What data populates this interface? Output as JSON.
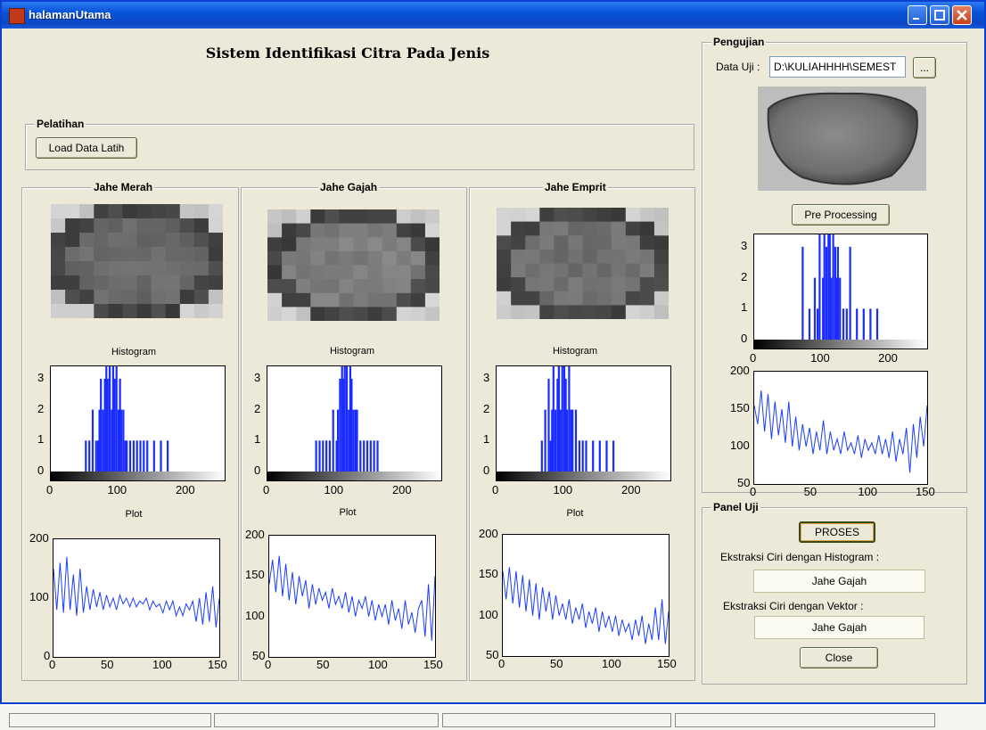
{
  "window": {
    "title": "halamanUtama"
  },
  "app_title": "Sistem Identifikasi Citra Pada Jenis",
  "pelatihan": {
    "title": "Pelatihan",
    "load_button": "Load Data Latih"
  },
  "classes": [
    {
      "title": "Jahe Merah",
      "histogram_caption": "Histogram",
      "plot_caption": "Plot",
      "hist_yticks": [
        "0",
        "1",
        "2",
        "3"
      ],
      "hist_xticks": [
        "0",
        "100",
        "200"
      ],
      "plot_yticks": [
        "0",
        "100",
        "200"
      ],
      "plot_xticks": [
        "0",
        "50",
        "100",
        "150"
      ],
      "img_color": "#6a6a6a"
    },
    {
      "title": "Jahe Gajah",
      "histogram_caption": "Histogram",
      "plot_caption": "Plot",
      "hist_yticks": [
        "0",
        "1",
        "2",
        "3"
      ],
      "hist_xticks": [
        "0",
        "100",
        "200"
      ],
      "plot_yticks": [
        "50",
        "100",
        "150",
        "200"
      ],
      "plot_xticks": [
        "0",
        "50",
        "100",
        "150"
      ],
      "img_color": "#7d7d7d"
    },
    {
      "title": "Jahe Emprit",
      "histogram_caption": "Histogram",
      "plot_caption": "Plot",
      "hist_yticks": [
        "0",
        "1",
        "2",
        "3"
      ],
      "hist_xticks": [
        "0",
        "100",
        "200"
      ],
      "plot_yticks": [
        "50",
        "100",
        "150",
        "200"
      ],
      "plot_xticks": [
        "0",
        "50",
        "100",
        "150"
      ],
      "img_color": "#707070"
    }
  ],
  "pengujian": {
    "title": "Pengujian",
    "data_uji_label": "Data Uji :",
    "data_uji_value": "D:\\KULIAHHHH\\SEMEST",
    "browse_label": "...",
    "preprocess_button": "Pre Processing",
    "hist_yticks": [
      "0",
      "1",
      "2",
      "3"
    ],
    "hist_xticks": [
      "0",
      "100",
      "200"
    ],
    "plot_yticks": [
      "50",
      "100",
      "150",
      "200"
    ],
    "plot_xticks": [
      "0",
      "50",
      "100",
      "150"
    ]
  },
  "panel_uji": {
    "title": "Panel Uji",
    "proses_button": "PROSES",
    "hist_label": "Ekstraksi Ciri dengan Histogram :",
    "hist_result": "Jahe Gajah",
    "vektor_label": "Ekstraksi Ciri dengan Vektor :",
    "vektor_result": "Jahe Gajah",
    "close_button": "Close"
  },
  "colors": {
    "plot_line": "#1a3cff",
    "hist_bar": "#1a2cff",
    "title_bar": "#0753d8"
  },
  "chart_data": [
    {
      "type": "bar",
      "title": "",
      "xlabel": "",
      "ylabel": "",
      "xlim": [
        0,
        255
      ],
      "ylim": [
        0,
        3.4
      ],
      "x": [
        50,
        55,
        60,
        65,
        68,
        70,
        72,
        75,
        78,
        80,
        82,
        85,
        88,
        90,
        92,
        95,
        98,
        100,
        102,
        105,
        108,
        110,
        115,
        120,
        125,
        130,
        135,
        140,
        150,
        160,
        170
      ],
      "values": [
        1,
        1,
        2,
        1,
        1,
        2,
        3,
        2,
        3,
        3.4,
        3,
        3.4,
        2,
        3.4,
        3,
        3.4,
        2,
        3,
        2,
        2,
        1,
        1,
        1,
        1,
        1,
        1,
        1,
        1,
        1,
        1,
        1
      ]
    },
    {
      "type": "bar",
      "title": "",
      "xlabel": "",
      "ylabel": "",
      "xlim": [
        0,
        255
      ],
      "ylim": [
        0,
        3.4
      ],
      "x": [
        70,
        75,
        80,
        85,
        90,
        95,
        100,
        102,
        105,
        108,
        110,
        112,
        115,
        118,
        120,
        122,
        125,
        128,
        130,
        135,
        140,
        145,
        150,
        155,
        160
      ],
      "values": [
        1,
        1,
        1,
        1,
        1,
        2,
        1,
        2,
        3,
        3.4,
        3,
        3.4,
        3.4,
        2,
        3.4,
        3,
        2,
        2,
        2,
        1,
        1,
        1,
        1,
        1,
        1
      ]
    },
    {
      "type": "bar",
      "title": "",
      "xlabel": "",
      "ylabel": "",
      "xlim": [
        0,
        255
      ],
      "ylim": [
        0,
        3.4
      ],
      "x": [
        65,
        70,
        75,
        78,
        80,
        82,
        85,
        88,
        90,
        92,
        95,
        98,
        100,
        102,
        105,
        108,
        110,
        115,
        120,
        125,
        130,
        140,
        150,
        160,
        170
      ],
      "values": [
        1,
        2,
        3,
        1,
        2,
        3.4,
        2,
        3,
        3.4,
        2,
        3.4,
        3.4,
        3,
        2,
        3.4,
        2,
        2,
        2,
        1,
        1,
        1,
        1,
        1,
        1,
        1
      ]
    },
    {
      "type": "bar",
      "title": "",
      "xlabel": "",
      "ylabel": "",
      "xlim": [
        0,
        255
      ],
      "ylim": [
        0,
        3.4
      ],
      "x": [
        70,
        80,
        88,
        92,
        95,
        100,
        102,
        105,
        108,
        110,
        112,
        115,
        118,
        120,
        122,
        125,
        130,
        135,
        140,
        150,
        160,
        170,
        180
      ],
      "values": [
        3,
        1,
        2,
        1,
        3.4,
        2,
        3.4,
        3,
        3.4,
        3.4,
        2,
        3.4,
        3,
        2,
        3,
        2,
        1,
        1,
        3,
        1,
        1,
        1,
        1
      ]
    },
    {
      "type": "line",
      "title": "",
      "xlabel": "",
      "ylabel": "",
      "xlim": [
        0,
        150
      ],
      "ylim": [
        0,
        200
      ],
      "x": [
        0,
        3,
        6,
        9,
        12,
        15,
        18,
        21,
        24,
        27,
        30,
        33,
        36,
        39,
        42,
        45,
        48,
        51,
        54,
        57,
        60,
        63,
        66,
        69,
        72,
        75,
        78,
        81,
        84,
        87,
        90,
        93,
        96,
        99,
        102,
        105,
        108,
        111,
        114,
        117,
        120,
        123,
        126,
        129,
        132,
        135,
        138,
        141,
        144,
        147,
        150
      ],
      "values": [
        150,
        80,
        160,
        75,
        170,
        80,
        140,
        70,
        150,
        75,
        120,
        80,
        115,
        85,
        110,
        80,
        105,
        85,
        100,
        80,
        105,
        90,
        100,
        85,
        100,
        85,
        95,
        90,
        100,
        80,
        95,
        85,
        90,
        75,
        95,
        80,
        95,
        70,
        85,
        70,
        90,
        80,
        95,
        60,
        100,
        55,
        110,
        60,
        120,
        50,
        100
      ]
    },
    {
      "type": "line",
      "title": "",
      "xlabel": "",
      "ylabel": "",
      "xlim": [
        0,
        150
      ],
      "ylim": [
        50,
        200
      ],
      "x": [
        0,
        3,
        6,
        9,
        12,
        15,
        18,
        21,
        24,
        27,
        30,
        33,
        36,
        39,
        42,
        45,
        48,
        51,
        54,
        57,
        60,
        63,
        66,
        69,
        72,
        75,
        78,
        81,
        84,
        87,
        90,
        93,
        96,
        99,
        102,
        105,
        108,
        111,
        114,
        117,
        120,
        123,
        126,
        129,
        132,
        135,
        138,
        141,
        144,
        147,
        150
      ],
      "values": [
        140,
        170,
        130,
        175,
        125,
        165,
        120,
        155,
        115,
        150,
        125,
        145,
        110,
        140,
        115,
        135,
        120,
        130,
        110,
        135,
        115,
        125,
        110,
        130,
        105,
        125,
        100,
        120,
        110,
        125,
        100,
        120,
        95,
        115,
        100,
        115,
        90,
        120,
        95,
        110,
        85,
        120,
        90,
        105,
        80,
        110,
        120,
        75,
        140,
        70,
        150
      ]
    },
    {
      "type": "line",
      "title": "",
      "xlabel": "",
      "ylabel": "",
      "xlim": [
        0,
        150
      ],
      "ylim": [
        50,
        200
      ],
      "x": [
        0,
        3,
        6,
        9,
        12,
        15,
        18,
        21,
        24,
        27,
        30,
        33,
        36,
        39,
        42,
        45,
        48,
        51,
        54,
        57,
        60,
        63,
        66,
        69,
        72,
        75,
        78,
        81,
        84,
        87,
        90,
        93,
        96,
        99,
        102,
        105,
        108,
        111,
        114,
        117,
        120,
        123,
        126,
        129,
        132,
        135,
        138,
        141,
        144,
        147,
        150
      ],
      "values": [
        155,
        120,
        160,
        115,
        155,
        110,
        150,
        105,
        145,
        100,
        140,
        95,
        135,
        105,
        130,
        95,
        125,
        100,
        115,
        95,
        120,
        90,
        110,
        95,
        115,
        85,
        105,
        90,
        110,
        80,
        105,
        85,
        100,
        80,
        100,
        75,
        95,
        80,
        90,
        70,
        95,
        75,
        100,
        65,
        90,
        70,
        110,
        70,
        120,
        65,
        105
      ]
    },
    {
      "type": "line",
      "title": "",
      "xlabel": "",
      "ylabel": "",
      "xlim": [
        0,
        150
      ],
      "ylim": [
        50,
        200
      ],
      "x": [
        0,
        3,
        6,
        9,
        12,
        15,
        18,
        21,
        24,
        27,
        30,
        33,
        36,
        39,
        42,
        45,
        48,
        51,
        54,
        57,
        60,
        63,
        66,
        69,
        72,
        75,
        78,
        81,
        84,
        87,
        90,
        93,
        96,
        99,
        102,
        105,
        108,
        111,
        114,
        117,
        120,
        123,
        126,
        129,
        132,
        135,
        138,
        141,
        144,
        147,
        150
      ],
      "values": [
        155,
        130,
        175,
        120,
        170,
        110,
        160,
        115,
        150,
        105,
        160,
        100,
        140,
        95,
        130,
        100,
        125,
        90,
        120,
        95,
        135,
        90,
        120,
        95,
        110,
        90,
        120,
        95,
        105,
        90,
        115,
        85,
        110,
        95,
        105,
        90,
        115,
        90,
        110,
        85,
        120,
        80,
        110,
        90,
        125,
        65,
        130,
        85,
        140,
        100,
        155
      ]
    }
  ]
}
